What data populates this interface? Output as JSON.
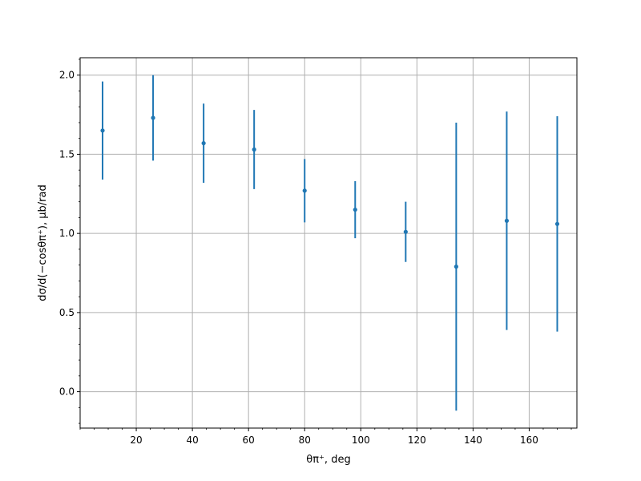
{
  "chart_data": {
    "type": "scatter",
    "title": "",
    "xlabel": "θπ⁺, deg",
    "ylabel": "dσ/d(−cosθπ⁺), μb/rad",
    "xlim": [
      0,
      177
    ],
    "ylim": [
      -0.23,
      2.11
    ],
    "grid": true,
    "x_ticks": [
      20,
      40,
      60,
      80,
      100,
      120,
      140,
      160
    ],
    "y_ticks": [
      0.0,
      0.5,
      1.0,
      1.5,
      2.0
    ],
    "x_tick_labels": [
      "20",
      "40",
      "60",
      "80",
      "100",
      "120",
      "140",
      "160"
    ],
    "y_tick_labels": [
      "0.0",
      "0.5",
      "1.0",
      "1.5",
      "2.0"
    ],
    "x_minor_step": 5,
    "y_minor_step": 0.1,
    "series": [
      {
        "color": "#1f77b4",
        "x": [
          8,
          26,
          44,
          62,
          80,
          98,
          116,
          134,
          152,
          170
        ],
        "y": [
          1.65,
          1.73,
          1.57,
          1.53,
          1.27,
          1.15,
          1.01,
          0.79,
          1.08,
          1.06
        ],
        "yerr": [
          0.31,
          0.27,
          0.25,
          0.25,
          0.2,
          0.18,
          0.19,
          0.91,
          0.69,
          0.68
        ]
      }
    ]
  }
}
